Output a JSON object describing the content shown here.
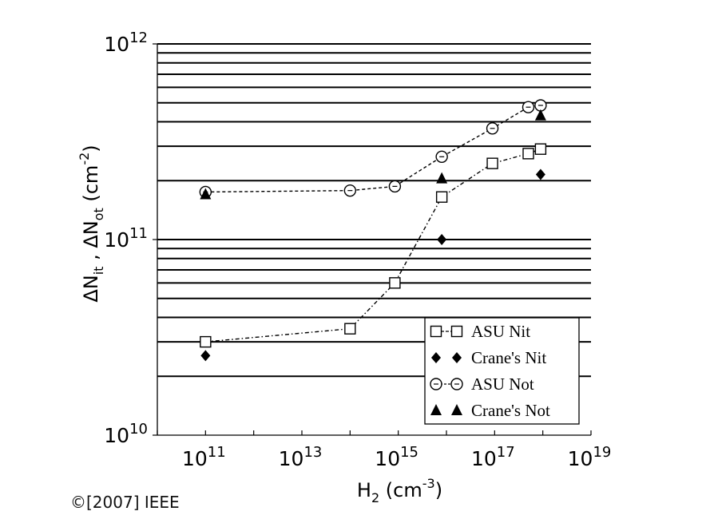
{
  "chart_data": {
    "type": "scatter",
    "title": "",
    "xlabel": {
      "base": "H",
      "sub": "2",
      "unit_prefix": " (cm",
      "unit_sup": "-3",
      "unit_suffix": ")"
    },
    "ylabel": {
      "parts": [
        {
          "t": "ΔN",
          "k": "n"
        },
        {
          "t": "it",
          "k": "sub"
        },
        {
          "t": " , ΔN",
          "k": "n"
        },
        {
          "t": "ot",
          "k": "sub"
        },
        {
          "t": " (cm",
          "k": "n"
        },
        {
          "t": "-2",
          "k": "sup"
        },
        {
          "t": ")",
          "k": "n"
        }
      ]
    },
    "x_scale": "log",
    "y_scale": "log",
    "xlim": [
      10000000000.0,
      1e+19
    ],
    "ylim": [
      10000000000.0,
      1000000000000.0
    ],
    "x_ticks": [
      {
        "value": 100000000000.0,
        "base": "10",
        "exp": "11"
      },
      {
        "value": 10000000000000.0,
        "base": "10",
        "exp": "13"
      },
      {
        "value": 1000000000000000.0,
        "base": "10",
        "exp": "15"
      },
      {
        "value": 1e+17,
        "base": "10",
        "exp": "17"
      },
      {
        "value": 1e+19,
        "base": "10",
        "exp": "19"
      }
    ],
    "y_ticks": [
      {
        "value": 10000000000.0,
        "base": "10",
        "exp": "10"
      },
      {
        "value": 100000000000.0,
        "base": "10",
        "exp": "11"
      },
      {
        "value": 1000000000000.0,
        "base": "10",
        "exp": "12"
      }
    ],
    "y_gridlines": [
      20000000000.0,
      30000000000.0,
      40000000000.0,
      50000000000.0,
      60000000000.0,
      70000000000.0,
      80000000000.0,
      90000000000.0,
      100000000000.0,
      200000000000.0,
      300000000000.0,
      400000000000.0,
      500000000000.0,
      600000000000.0,
      700000000000.0,
      800000000000.0,
      900000000000.0,
      1000000000000.0
    ],
    "grid": "horizontal",
    "legend_position": "bottom-right",
    "series": [
      {
        "name": "ASU Nit",
        "marker": "square-open",
        "line": "dashdot",
        "points": [
          [
            100000000000.0,
            30000000000.0
          ],
          [
            100000000000000.0,
            35000000000.0
          ],
          [
            850000000000000.0,
            60000000000.0
          ],
          [
            8000000000000000.0,
            165000000000.0
          ],
          [
            9e+16,
            245000000000.0
          ],
          [
            5e+17,
            275000000000.0
          ],
          [
            9e+17,
            290000000000.0
          ]
        ]
      },
      {
        "name": "Crane's Nit",
        "marker": "diamond-filled",
        "line": "none",
        "points": [
          [
            100000000000.0,
            25500000000.0
          ],
          [
            8000000000000000.0,
            100000000000.0
          ],
          [
            9e+17,
            215000000000.0
          ]
        ]
      },
      {
        "name": "ASU Not",
        "marker": "circle-open",
        "line": "dashed",
        "points": [
          [
            100000000000.0,
            175000000000.0
          ],
          [
            100000000000000.0,
            178000000000.0
          ],
          [
            850000000000000.0,
            187000000000.0
          ],
          [
            8000000000000000.0,
            265000000000.0
          ],
          [
            9e+16,
            370000000000.0
          ],
          [
            5e+17,
            475000000000.0
          ],
          [
            9e+17,
            485000000000.0
          ]
        ]
      },
      {
        "name": "Crane's Not",
        "marker": "triangle-filled",
        "line": "none",
        "points": [
          [
            100000000000.0,
            170000000000.0
          ],
          [
            8000000000000000.0,
            205000000000.0
          ],
          [
            9e+17,
            430000000000.0
          ]
        ]
      }
    ]
  },
  "footer": {
    "copyright": "©[2007] IEEE"
  }
}
